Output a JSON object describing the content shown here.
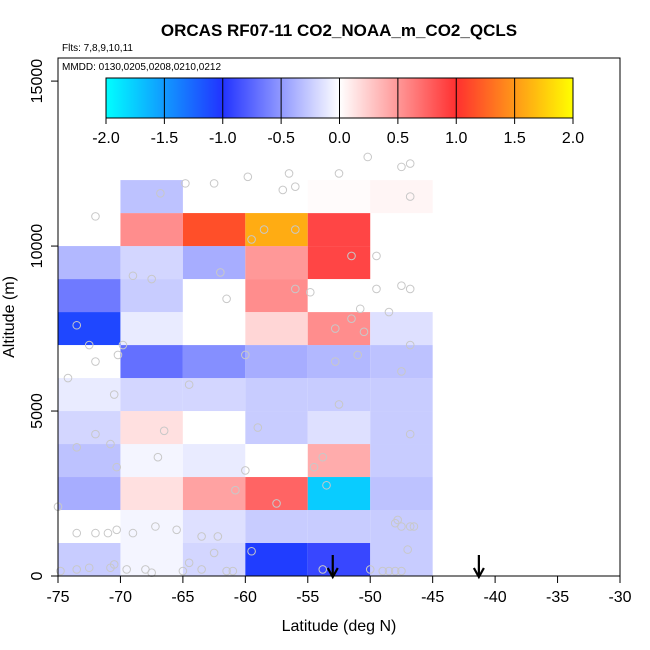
{
  "chart_data": {
    "type": "heatmap",
    "title": "ORCAS RF07-11 CO2_NOAA_m_CO2_QCLS",
    "subtitle_flights": "Flts: 7,8,9,10,11",
    "subtitle_dates": "MMDD: 0130,0205,0208,0210,0212",
    "xlabel": "Latitude (deg N)",
    "ylabel": "Altitude (m)",
    "xlim": [
      -75,
      -30
    ],
    "ylim": [
      0,
      15700
    ],
    "x_ticks": [
      "-75",
      "-70",
      "-65",
      "-60",
      "-55",
      "-50",
      "-45",
      "-40",
      "-35",
      "-30"
    ],
    "y_ticks": [
      "0",
      "5000",
      "10000",
      "15000"
    ],
    "x_tick_values": [
      -75,
      -70,
      -65,
      -60,
      -55,
      -50,
      -45,
      -40,
      -35,
      -30
    ],
    "y_tick_values": [
      0,
      5000,
      10000,
      15000
    ],
    "colorbar": {
      "range": [
        -2.0,
        2.0
      ],
      "tick_labels": [
        "-2.0",
        "-1.5",
        "-1.0",
        "-0.5",
        "0.0",
        "0.5",
        "1.0",
        "1.5",
        "2.0"
      ],
      "tick_values": [
        -2.0,
        -1.5,
        -1.0,
        -0.5,
        0.0,
        0.5,
        1.0,
        1.5,
        2.0
      ]
    },
    "x_bin_edges": [
      -75,
      -70,
      -65,
      -60,
      -55,
      -50,
      -45
    ],
    "y_bin_edges": [
      0,
      1000,
      2000,
      3000,
      4000,
      5000,
      6000,
      7000,
      8000,
      9000,
      10000,
      11000,
      12000
    ],
    "cells": [
      {
        "x": -75,
        "y": 0,
        "v": -0.25
      },
      {
        "x": -70,
        "y": 0,
        "v": -0.05
      },
      {
        "x": -65,
        "y": 0,
        "v": -0.2
      },
      {
        "x": -60,
        "y": 0,
        "v": -1.05
      },
      {
        "x": -55,
        "y": 0,
        "v": -0.9
      },
      {
        "x": -50,
        "y": 0,
        "v": -0.25
      },
      {
        "x": -75,
        "y": 1000,
        "v": 0.0
      },
      {
        "x": -70,
        "y": 1000,
        "v": -0.05
      },
      {
        "x": -65,
        "y": 1000,
        "v": -0.15
      },
      {
        "x": -60,
        "y": 1000,
        "v": -0.25
      },
      {
        "x": -55,
        "y": 1000,
        "v": -0.25
      },
      {
        "x": -50,
        "y": 1000,
        "v": -0.25
      },
      {
        "x": -75,
        "y": 2000,
        "v": -0.4
      },
      {
        "x": -70,
        "y": 2000,
        "v": 0.15
      },
      {
        "x": -65,
        "y": 2000,
        "v": 0.45
      },
      {
        "x": -60,
        "y": 2000,
        "v": 0.75
      },
      {
        "x": -55,
        "y": 2000,
        "v": -1.75
      },
      {
        "x": -50,
        "y": 2000,
        "v": -0.3
      },
      {
        "x": -75,
        "y": 3000,
        "v": -0.3
      },
      {
        "x": -70,
        "y": 3000,
        "v": -0.05
      },
      {
        "x": -65,
        "y": 3000,
        "v": -0.1
      },
      {
        "x": -60,
        "y": 3000,
        "v": 0.0
      },
      {
        "x": -55,
        "y": 3000,
        "v": 0.4
      },
      {
        "x": -50,
        "y": 3000,
        "v": -0.25
      },
      {
        "x": -75,
        "y": 4000,
        "v": -0.2
      },
      {
        "x": -70,
        "y": 4000,
        "v": 0.15
      },
      {
        "x": -65,
        "y": 4000,
        "v": 0.0
      },
      {
        "x": -60,
        "y": 4000,
        "v": -0.25
      },
      {
        "x": -55,
        "y": 4000,
        "v": -0.15
      },
      {
        "x": -50,
        "y": 4000,
        "v": -0.25
      },
      {
        "x": -75,
        "y": 5000,
        "v": -0.1
      },
      {
        "x": -70,
        "y": 5000,
        "v": -0.2
      },
      {
        "x": -65,
        "y": 5000,
        "v": -0.2
      },
      {
        "x": -60,
        "y": 5000,
        "v": -0.25
      },
      {
        "x": -55,
        "y": 5000,
        "v": -0.25
      },
      {
        "x": -50,
        "y": 5000,
        "v": -0.25
      },
      {
        "x": -75,
        "y": 6000,
        "v": 0.0
      },
      {
        "x": -70,
        "y": 6000,
        "v": -0.7
      },
      {
        "x": -65,
        "y": 6000,
        "v": -0.55
      },
      {
        "x": -60,
        "y": 6000,
        "v": -0.4
      },
      {
        "x": -55,
        "y": 6000,
        "v": -0.35
      },
      {
        "x": -50,
        "y": 6000,
        "v": -0.3
      },
      {
        "x": -75,
        "y": 7000,
        "v": -1.1
      },
      {
        "x": -70,
        "y": 7000,
        "v": -0.1
      },
      {
        "x": -65,
        "y": 7000,
        "v": 0.0
      },
      {
        "x": -60,
        "y": 7000,
        "v": 0.2
      },
      {
        "x": -55,
        "y": 7000,
        "v": 0.55
      },
      {
        "x": -50,
        "y": 7000,
        "v": -0.15
      },
      {
        "x": -75,
        "y": 8000,
        "v": -0.65
      },
      {
        "x": -70,
        "y": 8000,
        "v": -0.25
      },
      {
        "x": -65,
        "y": 8000,
        "v": 0.0
      },
      {
        "x": -60,
        "y": 8000,
        "v": 0.55
      },
      {
        "x": -55,
        "y": 8000,
        "v": 0.0
      },
      {
        "x": -75,
        "y": 9000,
        "v": -0.35
      },
      {
        "x": -70,
        "y": 9000,
        "v": -0.2
      },
      {
        "x": -65,
        "y": 9000,
        "v": -0.4
      },
      {
        "x": -60,
        "y": 9000,
        "v": 0.5
      },
      {
        "x": -55,
        "y": 9000,
        "v": 0.9
      },
      {
        "x": -70,
        "y": 10000,
        "v": 0.55
      },
      {
        "x": -65,
        "y": 10000,
        "v": 1.15
      },
      {
        "x": -60,
        "y": 10000,
        "v": 1.6
      },
      {
        "x": -55,
        "y": 10000,
        "v": 0.9
      },
      {
        "x": -70,
        "y": 11000,
        "v": -0.3
      },
      {
        "x": -55,
        "y": 11000,
        "v": 0.02
      },
      {
        "x": -50,
        "y": 11000,
        "v": 0.05
      }
    ],
    "points": [
      [
        -74.8,
        150
      ],
      [
        -73.5,
        200
      ],
      [
        -72.5,
        250
      ],
      [
        -70.8,
        250
      ],
      [
        -70.5,
        350
      ],
      [
        -69.5,
        200
      ],
      [
        -68.0,
        200
      ],
      [
        -67.5,
        100
      ],
      [
        -65.0,
        150
      ],
      [
        -64.5,
        400
      ],
      [
        -63.5,
        200
      ],
      [
        -62.5,
        700
      ],
      [
        -61.5,
        150
      ],
      [
        -61.0,
        150
      ],
      [
        -59.5,
        750
      ],
      [
        -53.8,
        200
      ],
      [
        -50.0,
        200
      ],
      [
        -49.0,
        150
      ],
      [
        -48.5,
        150
      ],
      [
        -48.0,
        150
      ],
      [
        -47.5,
        150
      ],
      [
        -47.0,
        800
      ],
      [
        -47.5,
        1500
      ],
      [
        -48.0,
        1600
      ],
      [
        -47.8,
        1700
      ],
      [
        -46.8,
        1500
      ],
      [
        -46.5,
        1500
      ],
      [
        -73.5,
        1300
      ],
      [
        -72.0,
        1300
      ],
      [
        -71.0,
        1300
      ],
      [
        -70.3,
        1400
      ],
      [
        -69.0,
        1300
      ],
      [
        -67.2,
        1500
      ],
      [
        -65.5,
        1400
      ],
      [
        -63.5,
        1200
      ],
      [
        -62.2,
        1200
      ],
      [
        -75.0,
        2100
      ],
      [
        -57.5,
        2200
      ],
      [
        -60.8,
        2600
      ],
      [
        -53.5,
        2750
      ],
      [
        -70.3,
        3300
      ],
      [
        -67.0,
        3600
      ],
      [
        -60.0,
        3200
      ],
      [
        -54.5,
        3300
      ],
      [
        -53.8,
        3600
      ],
      [
        -73.5,
        3900
      ],
      [
        -72.0,
        4300
      ],
      [
        -70.8,
        4000
      ],
      [
        -66.5,
        4400
      ],
      [
        -59.0,
        4500
      ],
      [
        -46.8,
        4300
      ],
      [
        -70.5,
        5500
      ],
      [
        -64.5,
        5800
      ],
      [
        -52.5,
        5200
      ],
      [
        -74.2,
        6000
      ],
      [
        -72.0,
        6500
      ],
      [
        -70.2,
        6700
      ],
      [
        -60.0,
        6700
      ],
      [
        -52.8,
        6500
      ],
      [
        -51.0,
        6700
      ],
      [
        -47.5,
        6200
      ],
      [
        -46.8,
        7000
      ],
      [
        -73.5,
        7600
      ],
      [
        -72.5,
        7000
      ],
      [
        -69.8,
        7000
      ],
      [
        -52.8,
        7500
      ],
      [
        -51.5,
        7800
      ],
      [
        -50.5,
        7400
      ],
      [
        -48.5,
        8000
      ],
      [
        -61.5,
        8400
      ],
      [
        -56.0,
        8700
      ],
      [
        -54.8,
        8600
      ],
      [
        -50.8,
        8100
      ],
      [
        -49.5,
        8700
      ],
      [
        -47.5,
        8800
      ],
      [
        -46.8,
        8700
      ],
      [
        -69.0,
        9100
      ],
      [
        -67.5,
        9000
      ],
      [
        -62.0,
        9200
      ],
      [
        -51.5,
        9700
      ],
      [
        -49.5,
        9700
      ],
      [
        -59.5,
        10200
      ],
      [
        -58.5,
        10500
      ],
      [
        -56.0,
        10500
      ],
      [
        -72.0,
        10900
      ],
      [
        -66.8,
        11600
      ],
      [
        -64.8,
        11900
      ],
      [
        -62.5,
        11900
      ],
      [
        -59.8,
        12100
      ],
      [
        -57.0,
        11700
      ],
      [
        -56.5,
        12200
      ],
      [
        -56.0,
        11800
      ],
      [
        -52.5,
        12200
      ],
      [
        -50.2,
        12700
      ],
      [
        -47.5,
        12400
      ],
      [
        -46.8,
        12500
      ],
      [
        -46.8,
        11500
      ]
    ],
    "arrows_latitude": [
      -53.0,
      -41.3
    ]
  },
  "colors": {
    "neg_end": "#00ffff",
    "neg_mid": "#2233ff",
    "zero": "#ffffff",
    "pos_mid": "#ff3030",
    "pos_end": "#ffff00",
    "point": "#c8c8c8"
  }
}
